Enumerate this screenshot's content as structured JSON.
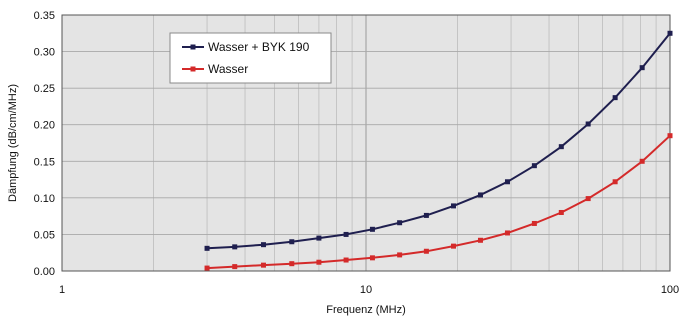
{
  "chart_data": {
    "type": "line",
    "xlabel": "Frequenz (MHz)",
    "ylabel": "Dämpfung (dB/cm/MHz)",
    "x_scale": "log",
    "xlim": [
      1,
      100
    ],
    "ylim": [
      0,
      0.35
    ],
    "x_ticks": [
      "1",
      "10",
      "100"
    ],
    "y_ticks": [
      "0.00",
      "0.05",
      "0.10",
      "0.15",
      "0.20",
      "0.25",
      "0.30",
      "0.35"
    ],
    "grid": true,
    "legend_position": "top-left",
    "series": [
      {
        "name": "Wasser + BYK 190",
        "color": "#1f1f4f",
        "x": [
          3,
          3.7,
          4.6,
          5.7,
          7,
          8.6,
          10.5,
          12.9,
          15.8,
          19.4,
          23.8,
          29.2,
          35.8,
          43.9,
          53.8,
          66,
          81,
          100
        ],
        "y": [
          0.031,
          0.033,
          0.036,
          0.04,
          0.045,
          0.05,
          0.057,
          0.066,
          0.076,
          0.089,
          0.104,
          0.122,
          0.144,
          0.17,
          0.201,
          0.237,
          0.278,
          0.325
        ]
      },
      {
        "name": "Wasser",
        "color": "#d42a2a",
        "x": [
          3,
          3.7,
          4.6,
          5.7,
          7,
          8.6,
          10.5,
          12.9,
          15.8,
          19.4,
          23.8,
          29.2,
          35.8,
          43.9,
          53.8,
          66,
          81,
          100
        ],
        "y": [
          0.004,
          0.006,
          0.008,
          0.01,
          0.012,
          0.015,
          0.018,
          0.022,
          0.027,
          0.034,
          0.042,
          0.052,
          0.065,
          0.08,
          0.099,
          0.122,
          0.15,
          0.185
        ]
      }
    ]
  }
}
